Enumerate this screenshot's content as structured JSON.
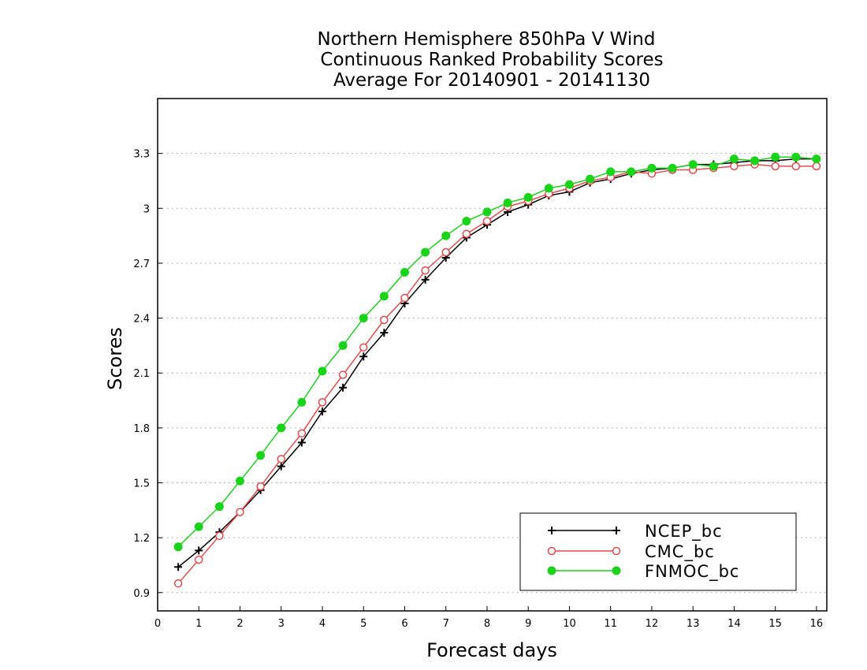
{
  "chart_data": {
    "type": "line",
    "title_lines": [
      "Northern Hemisphere 850hPa V Wind",
      "Continuous Ranked Probability Scores",
      "Average For 20140901 - 20141130"
    ],
    "xlabel": "Forecast days",
    "ylabel": "Scores",
    "xlim": [
      0,
      16.25
    ],
    "ylim": [
      0.8,
      3.6
    ],
    "xticks": [
      "0",
      "1",
      "2",
      "3",
      "4",
      "5",
      "6",
      "7",
      "8",
      "9",
      "10",
      "11",
      "12",
      "13",
      "14",
      "15",
      "16"
    ],
    "yticks": [
      "0.9",
      "1.2",
      "1.5",
      "1.8",
      "2.1",
      "2.4",
      "2.7",
      "3",
      "3.3"
    ],
    "ytick_values": [
      0.9,
      1.2,
      1.5,
      1.8,
      2.1,
      2.4,
      2.7,
      3.0,
      3.3
    ],
    "grid": "horizontal dotted",
    "legend_position": "bottom-right",
    "x": [
      0.5,
      1.0,
      1.5,
      2.0,
      2.5,
      3.0,
      3.5,
      4.0,
      4.5,
      5.0,
      5.5,
      6.0,
      6.5,
      7.0,
      7.5,
      8.0,
      8.5,
      9.0,
      9.5,
      10.0,
      10.5,
      11.0,
      11.5,
      12.0,
      12.5,
      13.0,
      13.5,
      14.0,
      14.5,
      15.0,
      15.5,
      16.0
    ],
    "series": [
      {
        "name": "NCEP_bc",
        "color": "#000000",
        "marker": "plus",
        "values": [
          1.04,
          1.13,
          1.23,
          1.34,
          1.46,
          1.59,
          1.72,
          1.89,
          2.02,
          2.19,
          2.32,
          2.48,
          2.61,
          2.73,
          2.84,
          2.91,
          2.98,
          3.02,
          3.07,
          3.09,
          3.14,
          3.16,
          3.19,
          3.21,
          3.22,
          3.24,
          3.24,
          3.25,
          3.26,
          3.26,
          3.27,
          3.27
        ]
      },
      {
        "name": "CMC_bc",
        "color": "#e84848",
        "marker": "open-circle",
        "values": [
          0.95,
          1.08,
          1.21,
          1.34,
          1.48,
          1.63,
          1.77,
          1.94,
          2.09,
          2.24,
          2.39,
          2.51,
          2.66,
          2.76,
          2.86,
          2.93,
          3.01,
          3.04,
          3.08,
          3.11,
          3.15,
          3.17,
          3.2,
          3.19,
          3.21,
          3.21,
          3.22,
          3.23,
          3.24,
          3.23,
          3.23,
          3.23
        ]
      },
      {
        "name": "FNMOC_bc",
        "color": "#19d419",
        "marker": "filled-circle",
        "values": [
          1.15,
          1.26,
          1.37,
          1.51,
          1.65,
          1.8,
          1.94,
          2.11,
          2.25,
          2.4,
          2.52,
          2.65,
          2.76,
          2.85,
          2.93,
          2.98,
          3.03,
          3.06,
          3.11,
          3.13,
          3.16,
          3.2,
          3.2,
          3.22,
          3.22,
          3.24,
          3.23,
          3.27,
          3.26,
          3.28,
          3.28,
          3.27
        ]
      }
    ]
  }
}
